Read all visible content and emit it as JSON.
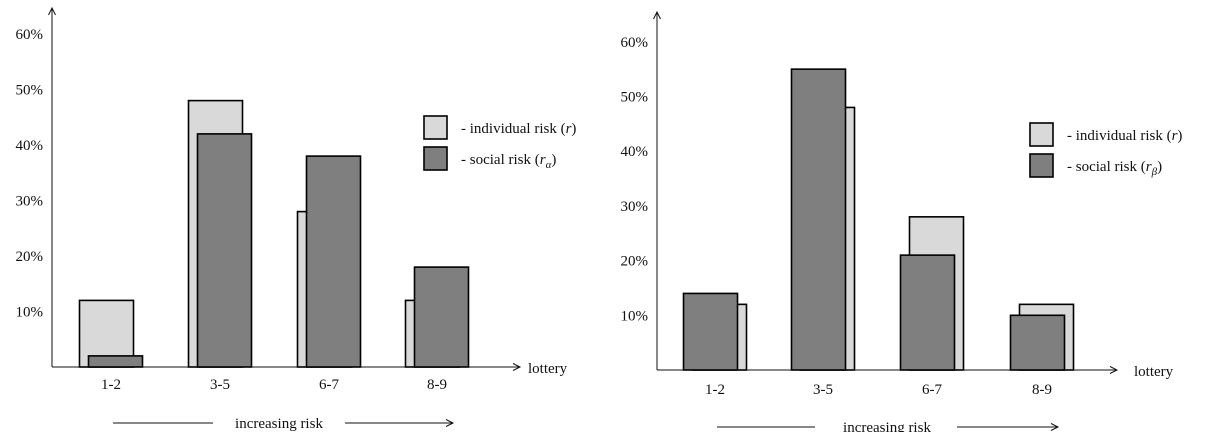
{
  "colors": {
    "individual": "#d9d9d9",
    "social": "#7f7f7f",
    "outline": "#000000"
  },
  "chart_data": [
    {
      "type": "bar",
      "categories": [
        "1-2",
        "3-5",
        "6-7",
        "8-9"
      ],
      "yticks": [
        "10%",
        "20%",
        "30%",
        "40%",
        "50%",
        "60%"
      ],
      "ylim": [
        0,
        65
      ],
      "xlabel": "lottery",
      "risk_label": "increasing risk",
      "legend_position": "right",
      "front_series": "social",
      "series": [
        {
          "key": "individual",
          "name": "individual risk",
          "symbol": "r",
          "subscript": "",
          "values": [
            12,
            48,
            28,
            12
          ]
        },
        {
          "key": "social",
          "name": "social risk",
          "symbol": "r",
          "subscript": "α",
          "values": [
            2,
            42,
            38,
            18
          ]
        }
      ]
    },
    {
      "type": "bar",
      "categories": [
        "1-2",
        "3-5",
        "6-7",
        "8-9"
      ],
      "yticks": [
        "10%",
        "20%",
        "30%",
        "40%",
        "50%",
        "60%"
      ],
      "ylim": [
        0,
        65
      ],
      "xlabel": "lottery",
      "risk_label": "increasing risk",
      "legend_position": "right",
      "front_series": "social",
      "series": [
        {
          "key": "individual",
          "name": "individual risk",
          "symbol": "r",
          "subscript": "",
          "values": [
            12,
            48,
            28,
            12
          ]
        },
        {
          "key": "social",
          "name": "social risk",
          "symbol": "r",
          "subscript": "β",
          "values": [
            14,
            55,
            21,
            10
          ]
        }
      ]
    }
  ]
}
